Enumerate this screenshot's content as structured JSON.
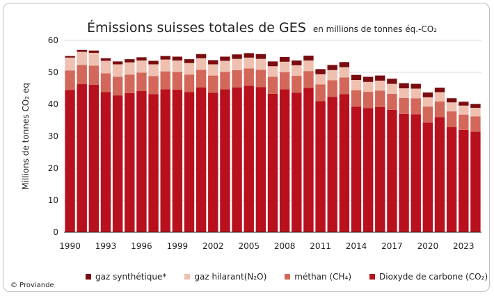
{
  "title": "Émissions suisses totales de GES",
  "subtitle": "en millions de tonnes éq.-CO₂",
  "copyright": "© Proviande",
  "colors": {
    "co2": "#b8101d",
    "ch4": "#d2675a",
    "n2o": "#efc0b0",
    "synth": "#7a0b0f",
    "grid": "#cfcfcf",
    "axis": "#222222"
  },
  "legend": [
    {
      "key": "synth",
      "label": "gaz synthétique*"
    },
    {
      "key": "n2o",
      "label": "gaz hilarant(N₂O)"
    },
    {
      "key": "ch4",
      "label": "méthan (CH₄)"
    },
    {
      "key": "co2",
      "label": "Dioxyde de carbone (CO₂)"
    }
  ],
  "chart_data": {
    "type": "bar",
    "stacked": true,
    "ylabel": "Millions de tonnes CO₂ eq",
    "ylim": [
      0,
      60
    ],
    "yticks": [
      0,
      10,
      20,
      30,
      40,
      50,
      60
    ],
    "grid": true,
    "legend_position": "bottom",
    "x": [
      1990,
      1991,
      1992,
      1993,
      1994,
      1995,
      1996,
      1997,
      1998,
      1999,
      2000,
      2001,
      2002,
      2003,
      2004,
      2005,
      2006,
      2007,
      2008,
      2009,
      2010,
      2011,
      2012,
      2013,
      2014,
      2015,
      2016,
      2017,
      2018,
      2019,
      2020,
      2021,
      2022,
      2023,
      2024
    ],
    "xtick_labels": [
      "1990",
      "1993",
      "1996",
      "1999",
      "2002",
      "2005",
      "2008",
      "2011",
      "2014",
      "2017",
      "2020",
      "2023"
    ],
    "series": [
      {
        "key": "co2",
        "name": "Dioxyde de carbone (CO₂)",
        "values": [
          44.5,
          46.3,
          46.1,
          43.8,
          42.8,
          43.5,
          44.2,
          43.2,
          44.7,
          44.6,
          43.8,
          45.3,
          43.6,
          44.7,
          45.3,
          45.8,
          45.4,
          43.3,
          44.7,
          43.6,
          45.1,
          41.0,
          42.3,
          43.2,
          39.3,
          38.8,
          39.2,
          38.3,
          37.0,
          36.9,
          34.3,
          36.0,
          32.9,
          32.0,
          31.4
        ]
      },
      {
        "key": "ch4",
        "name": "méthan (CH₄)",
        "values": [
          6.1,
          6.0,
          6.0,
          5.9,
          5.8,
          5.8,
          5.7,
          5.6,
          5.6,
          5.5,
          5.5,
          5.5,
          5.4,
          5.4,
          5.4,
          5.4,
          5.4,
          5.3,
          5.3,
          5.3,
          5.3,
          5.2,
          5.2,
          5.2,
          5.1,
          5.1,
          5.1,
          5.0,
          5.0,
          5.0,
          5.0,
          4.9,
          4.9,
          4.8,
          4.8
        ]
      },
      {
        "key": "n2o",
        "name": "gaz hilarant(N₂O)",
        "values": [
          4.0,
          4.1,
          4.0,
          3.9,
          3.9,
          3.8,
          3.8,
          3.7,
          3.7,
          3.6,
          3.6,
          3.6,
          3.5,
          3.5,
          3.5,
          3.4,
          3.4,
          3.3,
          3.3,
          3.3,
          3.3,
          3.2,
          3.2,
          3.2,
          3.2,
          3.1,
          3.1,
          3.1,
          3.0,
          3.0,
          2.9,
          2.9,
          2.8,
          2.8,
          2.7
        ]
      },
      {
        "key": "synth",
        "name": "gaz synthétique*",
        "values": [
          0.5,
          0.6,
          0.7,
          0.8,
          0.9,
          1.0,
          1.0,
          1.1,
          1.1,
          1.2,
          1.2,
          1.3,
          1.3,
          1.3,
          1.4,
          1.4,
          1.5,
          1.5,
          1.5,
          1.5,
          1.5,
          1.6,
          1.6,
          1.6,
          1.6,
          1.6,
          1.6,
          1.6,
          1.6,
          1.5,
          1.5,
          1.4,
          1.3,
          1.2,
          1.2
        ]
      }
    ]
  }
}
